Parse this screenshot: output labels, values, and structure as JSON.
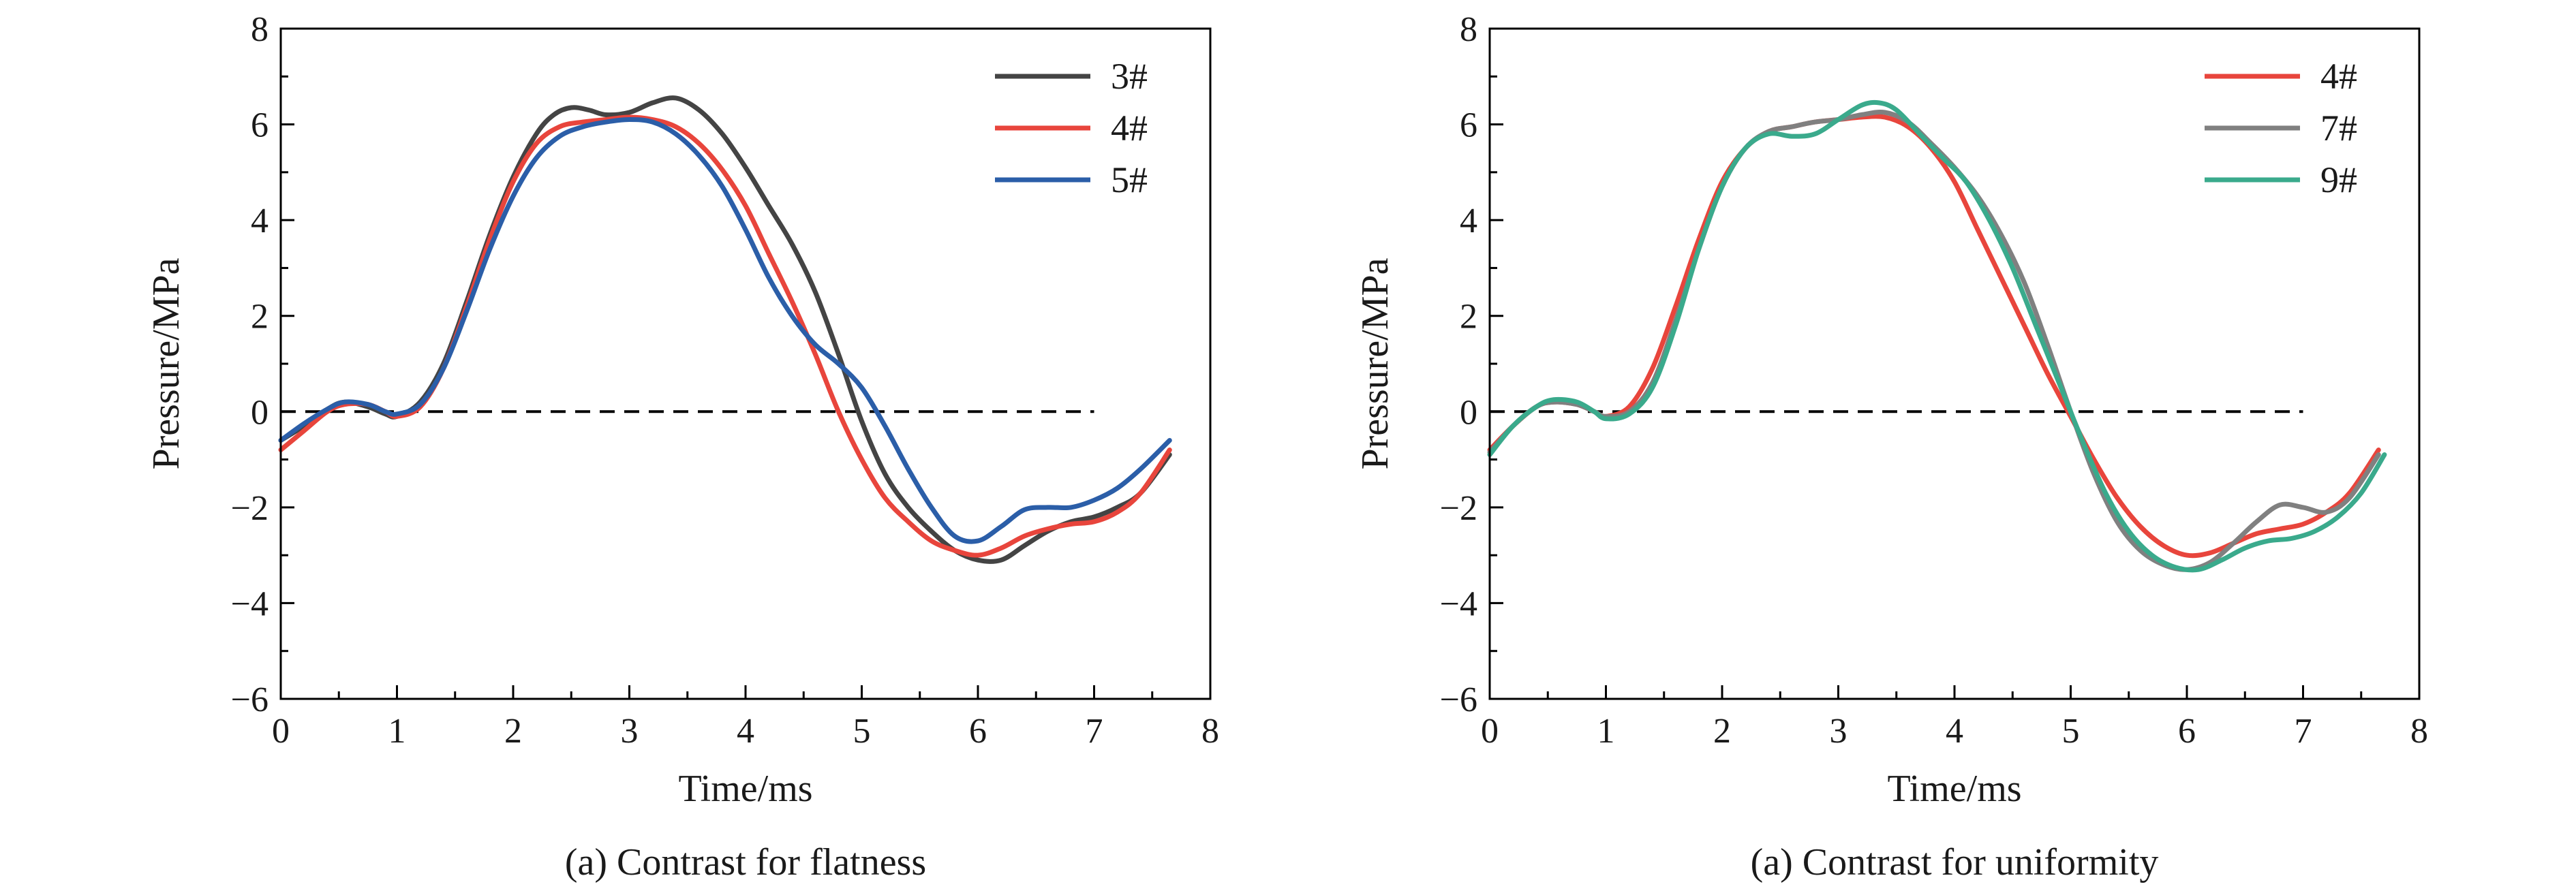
{
  "chart_data": [
    {
      "type": "line",
      "caption": "(a) Contrast for flatness",
      "xlabel": "Time/ms",
      "ylabel": "Pressure/MPa",
      "xlim": [
        0,
        8
      ],
      "ylim": [
        -6,
        8
      ],
      "xticks": [
        "0",
        "1",
        "2",
        "3",
        "4",
        "5",
        "6",
        "7",
        "8"
      ],
      "yticks": [
        "8",
        "6",
        "4",
        "2",
        "0",
        "−2",
        "−4",
        "−6"
      ],
      "legend_position": "top-right",
      "reference_line": {
        "y": 0,
        "x": [
          0,
          7
        ],
        "style": "dashed"
      },
      "series": [
        {
          "name": "3#",
          "color": "#444444",
          "x": [
            0,
            0.2,
            0.4,
            0.55,
            0.75,
            0.9,
            1.0,
            1.2,
            1.4,
            1.6,
            1.8,
            2.0,
            2.2,
            2.35,
            2.5,
            2.65,
            2.8,
            3.0,
            3.2,
            3.4,
            3.6,
            3.8,
            4.0,
            4.2,
            4.4,
            4.6,
            4.8,
            5.0,
            5.2,
            5.4,
            5.6,
            5.8,
            6.0,
            6.2,
            6.4,
            6.6,
            6.8,
            7.0,
            7.2,
            7.4,
            7.65
          ],
          "y": [
            -0.6,
            -0.3,
            0.05,
            0.2,
            0.1,
            -0.05,
            -0.1,
            0.2,
            1.0,
            2.3,
            3.7,
            4.9,
            5.8,
            6.2,
            6.35,
            6.3,
            6.2,
            6.25,
            6.45,
            6.55,
            6.3,
            5.8,
            5.1,
            4.3,
            3.5,
            2.5,
            1.2,
            -0.2,
            -1.3,
            -2.0,
            -2.5,
            -2.9,
            -3.1,
            -3.1,
            -2.8,
            -2.5,
            -2.3,
            -2.2,
            -2.0,
            -1.7,
            -0.9
          ]
        },
        {
          "name": "4#",
          "color": "#e8453c",
          "x": [
            0,
            0.2,
            0.4,
            0.55,
            0.75,
            0.9,
            1.0,
            1.2,
            1.4,
            1.6,
            1.8,
            2.0,
            2.2,
            2.4,
            2.6,
            2.8,
            3.0,
            3.2,
            3.4,
            3.6,
            3.8,
            4.0,
            4.2,
            4.4,
            4.6,
            4.8,
            5.0,
            5.2,
            5.4,
            5.6,
            5.8,
            6.0,
            6.2,
            6.4,
            6.6,
            6.8,
            7.0,
            7.2,
            7.4,
            7.65
          ],
          "y": [
            -0.8,
            -0.4,
            0.0,
            0.15,
            0.15,
            0.0,
            -0.1,
            0.1,
            0.9,
            2.2,
            3.6,
            4.8,
            5.6,
            5.95,
            6.05,
            6.1,
            6.15,
            6.1,
            5.95,
            5.6,
            5.05,
            4.3,
            3.3,
            2.3,
            1.2,
            0.0,
            -1.0,
            -1.8,
            -2.3,
            -2.7,
            -2.9,
            -3.0,
            -2.85,
            -2.6,
            -2.45,
            -2.35,
            -2.3,
            -2.1,
            -1.7,
            -0.8
          ]
        },
        {
          "name": "5#",
          "color": "#2b5ea8",
          "x": [
            0,
            0.2,
            0.4,
            0.55,
            0.75,
            0.9,
            1.0,
            1.2,
            1.4,
            1.6,
            1.8,
            2.0,
            2.2,
            2.4,
            2.6,
            2.8,
            3.0,
            3.2,
            3.4,
            3.6,
            3.8,
            4.0,
            4.2,
            4.4,
            4.6,
            4.8,
            5.0,
            5.2,
            5.4,
            5.6,
            5.8,
            6.0,
            6.2,
            6.4,
            6.6,
            6.8,
            7.0,
            7.2,
            7.4,
            7.65
          ],
          "y": [
            -0.6,
            -0.25,
            0.05,
            0.2,
            0.15,
            0.0,
            -0.05,
            0.15,
            0.9,
            2.1,
            3.4,
            4.5,
            5.3,
            5.75,
            5.95,
            6.05,
            6.1,
            6.05,
            5.8,
            5.35,
            4.7,
            3.8,
            2.8,
            2.0,
            1.4,
            1.0,
            0.5,
            -0.3,
            -1.2,
            -2.0,
            -2.6,
            -2.7,
            -2.4,
            -2.05,
            -2.0,
            -2.0,
            -1.85,
            -1.6,
            -1.2,
            -0.6
          ]
        }
      ]
    },
    {
      "type": "line",
      "caption": "(a) Contrast for uniformity",
      "xlabel": "Time/ms",
      "ylabel": "Pressure/MPa",
      "xlim": [
        0,
        8
      ],
      "ylim": [
        -6,
        8
      ],
      "xticks": [
        "0",
        "1",
        "2",
        "3",
        "4",
        "5",
        "6",
        "7",
        "8"
      ],
      "yticks": [
        "8",
        "6",
        "4",
        "2",
        "0",
        "−2",
        "−4",
        "−6"
      ],
      "legend_position": "top-right",
      "reference_line": {
        "y": 0,
        "x": [
          0,
          7
        ],
        "style": "dashed"
      },
      "series": [
        {
          "name": "4#",
          "color": "#e8453c",
          "x": [
            0,
            0.2,
            0.4,
            0.55,
            0.75,
            0.9,
            1.0,
            1.2,
            1.4,
            1.6,
            1.8,
            2.0,
            2.2,
            2.4,
            2.6,
            2.8,
            3.0,
            3.2,
            3.4,
            3.6,
            3.8,
            4.0,
            4.2,
            4.4,
            4.6,
            4.8,
            5.0,
            5.2,
            5.4,
            5.6,
            5.8,
            6.0,
            6.2,
            6.4,
            6.6,
            6.8,
            7.0,
            7.2,
            7.4,
            7.65
          ],
          "y": [
            -0.8,
            -0.3,
            0.1,
            0.2,
            0.15,
            0.0,
            -0.1,
            0.1,
            0.9,
            2.2,
            3.6,
            4.8,
            5.5,
            5.85,
            5.95,
            6.05,
            6.1,
            6.15,
            6.15,
            5.95,
            5.5,
            4.8,
            3.8,
            2.8,
            1.8,
            0.8,
            -0.1,
            -1.0,
            -1.8,
            -2.4,
            -2.8,
            -3.0,
            -2.95,
            -2.75,
            -2.55,
            -2.45,
            -2.35,
            -2.1,
            -1.7,
            -0.8
          ]
        },
        {
          "name": "7#",
          "color": "#808080",
          "x": [
            0,
            0.2,
            0.4,
            0.55,
            0.75,
            0.9,
            1.0,
            1.2,
            1.4,
            1.6,
            1.8,
            2.0,
            2.2,
            2.4,
            2.6,
            2.8,
            3.0,
            3.2,
            3.4,
            3.6,
            3.8,
            4.0,
            4.2,
            4.4,
            4.6,
            4.8,
            5.0,
            5.2,
            5.4,
            5.6,
            5.8,
            6.0,
            6.2,
            6.4,
            6.6,
            6.8,
            7.0,
            7.2,
            7.4,
            7.65
          ],
          "y": [
            -0.85,
            -0.3,
            0.1,
            0.2,
            0.15,
            0.0,
            -0.1,
            0.0,
            0.6,
            1.9,
            3.4,
            4.7,
            5.5,
            5.85,
            5.95,
            6.05,
            6.1,
            6.2,
            6.25,
            6.05,
            5.6,
            5.1,
            4.5,
            3.7,
            2.7,
            1.4,
            0.0,
            -1.3,
            -2.3,
            -2.9,
            -3.2,
            -3.3,
            -3.15,
            -2.75,
            -2.3,
            -1.95,
            -2.0,
            -2.1,
            -1.8,
            -0.9
          ]
        },
        {
          "name": "9#",
          "color": "#3aaa8c",
          "x": [
            0,
            0.2,
            0.4,
            0.55,
            0.75,
            0.9,
            1.0,
            1.2,
            1.4,
            1.6,
            1.8,
            2.0,
            2.2,
            2.4,
            2.6,
            2.8,
            3.0,
            3.2,
            3.35,
            3.5,
            3.7,
            3.9,
            4.1,
            4.3,
            4.5,
            4.7,
            4.9,
            5.1,
            5.3,
            5.5,
            5.7,
            5.9,
            6.1,
            6.3,
            6.5,
            6.7,
            6.9,
            7.1,
            7.3,
            7.5,
            7.7
          ],
          "y": [
            -0.9,
            -0.3,
            0.1,
            0.25,
            0.2,
            0.0,
            -0.15,
            -0.05,
            0.5,
            1.8,
            3.4,
            4.7,
            5.5,
            5.8,
            5.75,
            5.8,
            6.1,
            6.4,
            6.45,
            6.3,
            5.8,
            5.3,
            4.8,
            4.0,
            3.0,
            1.8,
            0.6,
            -0.6,
            -1.7,
            -2.5,
            -3.0,
            -3.25,
            -3.3,
            -3.1,
            -2.85,
            -2.7,
            -2.65,
            -2.5,
            -2.2,
            -1.7,
            -0.9
          ]
        }
      ]
    }
  ]
}
